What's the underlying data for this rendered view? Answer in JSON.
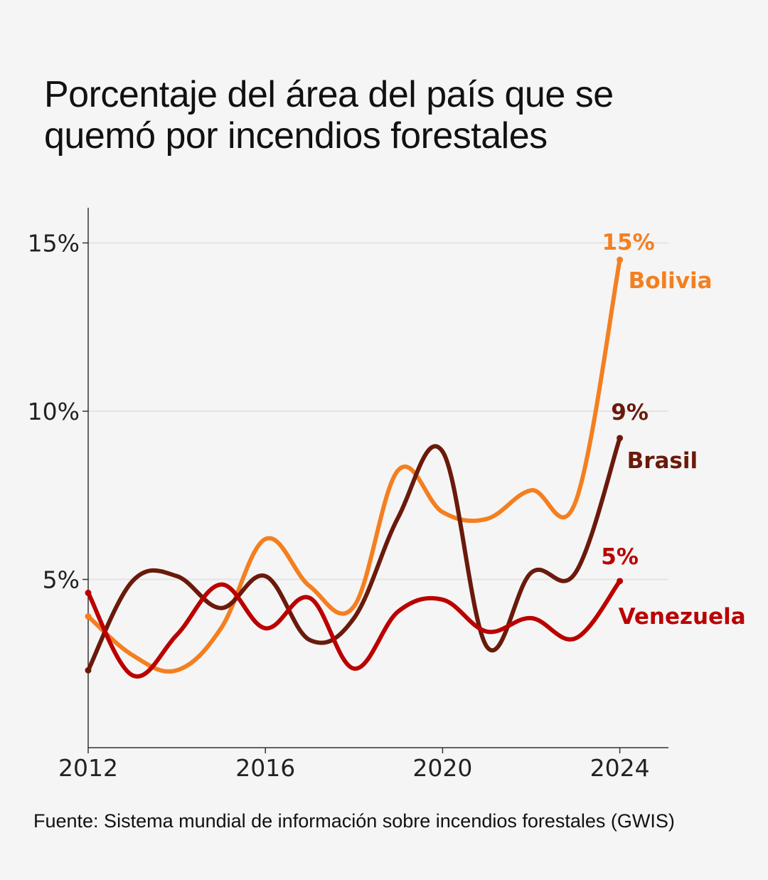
{
  "title_lines": [
    "Porcentaje del área del país que se",
    "quemó por incendios forestales"
  ],
  "source": "Fuente: Sistema mundial de información sobre incendios forestales (GWIS)",
  "chart_data": {
    "type": "line",
    "title": "Porcentaje del área del país que se quemó por incendios forestales",
    "xlabel": "",
    "ylabel": "",
    "x": [
      2012,
      2013,
      2014,
      2015,
      2016,
      2017,
      2018,
      2019,
      2020,
      2021,
      2022,
      2023,
      2024
    ],
    "xlim": [
      2012,
      2025.1
    ],
    "ylim": [
      0,
      16
    ],
    "x_ticks": [
      2012,
      2016,
      2020,
      2024
    ],
    "x_tick_labels": [
      "2012",
      "2016",
      "2020",
      "2024"
    ],
    "y_ticks": [
      5,
      10,
      15
    ],
    "y_tick_labels": [
      "5%",
      "10%",
      "15%"
    ],
    "grid": "horizontal",
    "legend": "direct-labels-right",
    "series": [
      {
        "name": "Bolivia",
        "color": "#f47f20",
        "end_label": "15%",
        "values": [
          3.9,
          2.75,
          2.3,
          3.55,
          6.2,
          4.8,
          4.2,
          8.25,
          7.0,
          6.8,
          7.65,
          7.3,
          14.5
        ]
      },
      {
        "name": "Brasil",
        "color": "#6a1a0b",
        "end_label": "9%",
        "values": [
          2.3,
          4.95,
          5.1,
          4.15,
          5.1,
          3.2,
          3.85,
          6.85,
          8.8,
          3.0,
          5.2,
          5.2,
          9.2
        ]
      },
      {
        "name": "Venezuela",
        "color": "#bb0000",
        "end_label": "5%",
        "values": [
          4.6,
          2.15,
          3.35,
          4.85,
          3.55,
          4.45,
          2.35,
          4.05,
          4.4,
          3.45,
          3.85,
          3.25,
          4.95
        ]
      }
    ]
  }
}
